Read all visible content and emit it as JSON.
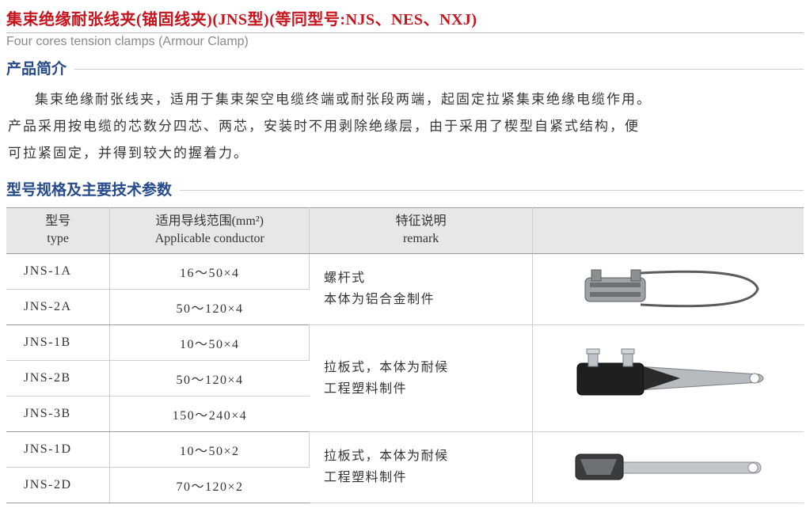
{
  "title": {
    "main_zh": "集束绝缘耐张线夹(锚固线夹)(JNS型)(等同型号:NJS、NES、NXJ)",
    "sub_en": "Four cores tension clamps (Armour Clamp)",
    "color_main": "#c8141d",
    "color_sub": "#8a8a8a"
  },
  "sections": {
    "intro_head": "产品简介",
    "spec_head": "型号规格及主要技术参数",
    "head_color": "#264a8b"
  },
  "intro": {
    "p1": "集束绝缘耐张线夹，适用于集束架空电缆终端或耐张段两端，起固定拉紧集束绝缘电缆作用。",
    "p2": "产品采用按电缆的芯数分四芯、两芯，安装时不用剥除绝缘层，由于采用了楔型自紧式结构，便",
    "p3": "可拉紧固定，并得到较大的握着力。"
  },
  "table": {
    "header_bg": "#e7e7e7",
    "rule_strong": "#9a9a9a",
    "rule_light": "#cfcfcf",
    "col_widths_pct": [
      13,
      25,
      28,
      34
    ],
    "columns": [
      {
        "zh": "型号",
        "en": "type"
      },
      {
        "zh": "适用导线范围(mm²)",
        "en": "Applicable conductor"
      },
      {
        "zh": "特征说明",
        "en": "remark"
      },
      {
        "zh": "",
        "en": ""
      }
    ],
    "groups": [
      {
        "remark": "螺杆式\n本体为铝合金制件",
        "image_name": "clamp-screw-type",
        "rows": [
          {
            "type": "JNS-1A",
            "conductor": "16～50×4"
          },
          {
            "type": "JNS-2A",
            "conductor": "50～120×4"
          }
        ]
      },
      {
        "remark": "拉板式，本体为耐候\n工程塑料制件",
        "image_name": "clamp-plate-type-4core",
        "rows": [
          {
            "type": "JNS-1B",
            "conductor": "10～50×4"
          },
          {
            "type": "JNS-2B",
            "conductor": "50～120×4"
          },
          {
            "type": "JNS-3B",
            "conductor": "150～240×4"
          }
        ]
      },
      {
        "remark": "拉板式，本体为耐候\n工程塑料制件",
        "image_name": "clamp-plate-type-2core",
        "rows": [
          {
            "type": "JNS-1D",
            "conductor": "10～50×2"
          },
          {
            "type": "JNS-2D",
            "conductor": "70～120×2"
          }
        ]
      }
    ]
  }
}
